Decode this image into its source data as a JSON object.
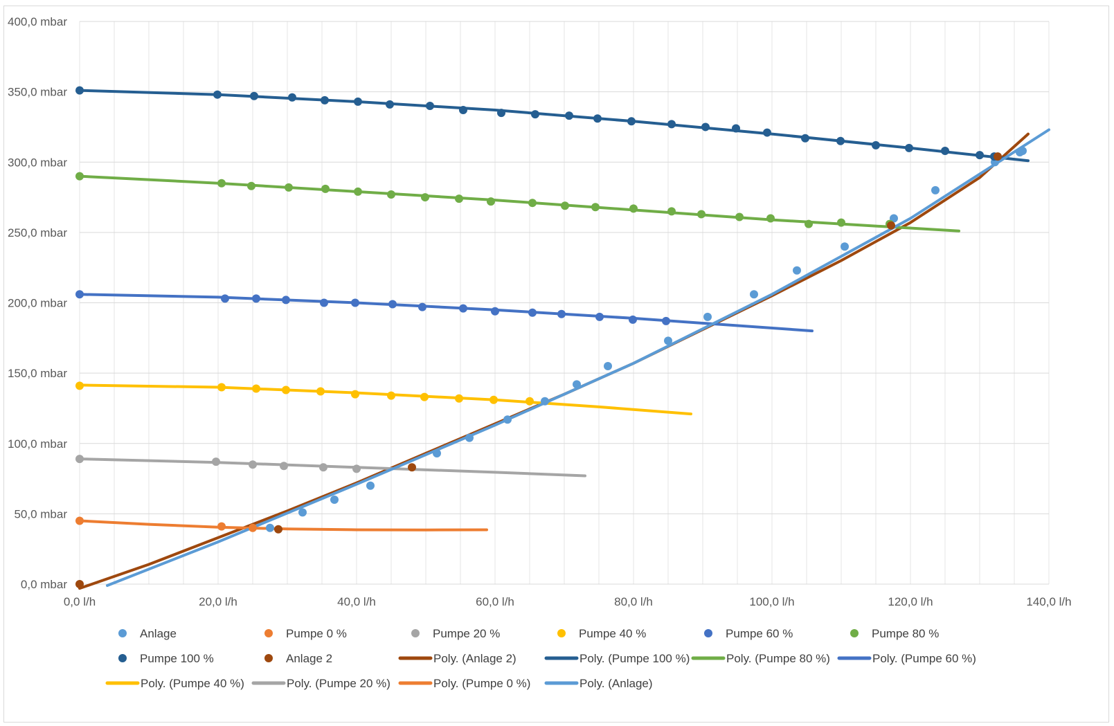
{
  "chart_data": {
    "type": "scatter",
    "title": "",
    "xlabel": "",
    "ylabel": "",
    "xlim": [
      0,
      140
    ],
    "ylim": [
      0,
      400
    ],
    "grid": true,
    "legend_position": "bottom",
    "x_ticks": [
      {
        "value": 0,
        "label": "0,0 l/h"
      },
      {
        "value": 20,
        "label": "20,0 l/h"
      },
      {
        "value": 40,
        "label": "40,0 l/h"
      },
      {
        "value": 60,
        "label": "60,0 l/h"
      },
      {
        "value": 80,
        "label": "80,0 l/h"
      },
      {
        "value": 100,
        "label": "100,0 l/h"
      },
      {
        "value": 120,
        "label": "120,0 l/h"
      },
      {
        "value": 140,
        "label": "140,0 l/h"
      }
    ],
    "y_ticks": [
      {
        "value": 0,
        "label": "0,0 mbar"
      },
      {
        "value": 50,
        "label": "50,0 mbar"
      },
      {
        "value": 100,
        "label": "100,0 mbar"
      },
      {
        "value": 150,
        "label": "150,0 mbar"
      },
      {
        "value": 200,
        "label": "200,0 mbar"
      },
      {
        "value": 250,
        "label": "250,0 mbar"
      },
      {
        "value": 300,
        "label": "300,0 mbar"
      },
      {
        "value": 350,
        "label": "350,0 mbar"
      },
      {
        "value": 400,
        "label": "400,0 mbar"
      }
    ],
    "series": [
      {
        "name": "Anlage",
        "color": "#5b9bd5",
        "kind": "points",
        "points": [
          [
            27.5,
            40
          ],
          [
            32.2,
            51
          ],
          [
            36.8,
            60
          ],
          [
            42,
            70
          ],
          [
            51.6,
            93
          ],
          [
            56.3,
            104
          ],
          [
            61.8,
            117
          ],
          [
            67.2,
            130
          ],
          [
            71.8,
            142
          ],
          [
            76.3,
            155
          ],
          [
            85,
            173
          ],
          [
            90.7,
            190
          ],
          [
            97.4,
            206
          ],
          [
            103.6,
            223
          ],
          [
            110.5,
            240
          ],
          [
            117.6,
            260
          ],
          [
            123.6,
            280
          ],
          [
            132.2,
            300
          ],
          [
            135.8,
            307
          ],
          [
            136.2,
            308
          ]
        ]
      },
      {
        "name": "Pumpe 0 %",
        "color": "#ed7d31",
        "kind": "points",
        "points": [
          [
            0,
            45
          ],
          [
            20.5,
            41
          ],
          [
            25,
            40
          ]
        ]
      },
      {
        "name": "Pumpe 20 %",
        "color": "#a5a5a5",
        "kind": "points",
        "points": [
          [
            0,
            89
          ],
          [
            19.7,
            87
          ],
          [
            25,
            85
          ],
          [
            29.5,
            84
          ],
          [
            35.2,
            83
          ],
          [
            40,
            82
          ]
        ]
      },
      {
        "name": "Pumpe 40 %",
        "color": "#ffc000",
        "kind": "points",
        "points": [
          [
            0,
            141
          ],
          [
            20.5,
            140
          ],
          [
            25.5,
            139
          ],
          [
            29.8,
            138
          ],
          [
            34.8,
            137
          ],
          [
            39.8,
            135
          ],
          [
            45,
            134
          ],
          [
            49.8,
            133
          ],
          [
            54.8,
            132
          ],
          [
            59.8,
            131
          ],
          [
            65,
            130
          ]
        ]
      },
      {
        "name": "Pumpe 60 %",
        "color": "#4472c4",
        "kind": "points",
        "points": [
          [
            0,
            206
          ],
          [
            21,
            203
          ],
          [
            25.5,
            203
          ],
          [
            29.8,
            202
          ],
          [
            35.3,
            200
          ],
          [
            39.8,
            200
          ],
          [
            45.2,
            199
          ],
          [
            49.5,
            197
          ],
          [
            55.4,
            196
          ],
          [
            60,
            194
          ],
          [
            65.4,
            193
          ],
          [
            69.6,
            192
          ],
          [
            75.1,
            190
          ],
          [
            79.9,
            188
          ],
          [
            84.7,
            187
          ]
        ]
      },
      {
        "name": "Pumpe 80 %",
        "color": "#70ad47",
        "kind": "points",
        "points": [
          [
            0,
            290
          ],
          [
            20.5,
            285
          ],
          [
            24.8,
            283
          ],
          [
            30.2,
            282
          ],
          [
            35.5,
            281
          ],
          [
            40.2,
            279
          ],
          [
            45,
            277
          ],
          [
            49.9,
            275
          ],
          [
            54.8,
            274
          ],
          [
            59.4,
            272
          ],
          [
            65.4,
            271
          ],
          [
            70.1,
            269
          ],
          [
            74.5,
            268
          ],
          [
            80,
            267
          ],
          [
            85.5,
            265
          ],
          [
            89.8,
            263
          ],
          [
            95.3,
            261
          ],
          [
            99.8,
            260
          ],
          [
            105.3,
            256
          ],
          [
            110,
            257
          ],
          [
            117,
            256
          ]
        ]
      },
      {
        "name": "Pumpe 100 %",
        "color": "#255e91",
        "kind": "points",
        "points": [
          [
            0,
            351
          ],
          [
            19.9,
            348
          ],
          [
            25.2,
            347
          ],
          [
            30.7,
            346
          ],
          [
            35.4,
            344
          ],
          [
            40.2,
            343
          ],
          [
            44.8,
            341
          ],
          [
            50.6,
            340
          ],
          [
            55.4,
            337
          ],
          [
            60.9,
            335
          ],
          [
            65.8,
            334
          ],
          [
            70.7,
            333
          ],
          [
            74.8,
            331
          ],
          [
            79.7,
            329
          ],
          [
            85.5,
            327
          ],
          [
            90.4,
            325
          ],
          [
            94.8,
            324
          ],
          [
            99.3,
            321
          ],
          [
            104.8,
            317
          ],
          [
            109.9,
            315
          ],
          [
            115,
            312
          ],
          [
            119.8,
            310
          ],
          [
            125,
            308
          ],
          [
            130,
            305
          ],
          [
            132.1,
            304
          ]
        ]
      },
      {
        "name": "Anlage 2",
        "color": "#9e480e",
        "kind": "points",
        "points": [
          [
            0,
            0
          ],
          [
            28.7,
            39
          ],
          [
            48,
            83
          ],
          [
            117.2,
            255
          ],
          [
            132.6,
            304
          ]
        ]
      },
      {
        "name": "Poly. (Anlage 2)",
        "color": "#9e480e",
        "kind": "line",
        "points": [
          [
            0,
            -3
          ],
          [
            10,
            14
          ],
          [
            20,
            33
          ],
          [
            30,
            52
          ],
          [
            40,
            72
          ],
          [
            50,
            93
          ],
          [
            60,
            114
          ],
          [
            70,
            135
          ],
          [
            80,
            157
          ],
          [
            90,
            181
          ],
          [
            100,
            205
          ],
          [
            110,
            230
          ],
          [
            120,
            257
          ],
          [
            130,
            289
          ],
          [
            137,
            320
          ]
        ]
      },
      {
        "name": "Poly. (Pumpe 100 %)",
        "color": "#255e91",
        "kind": "line",
        "points": [
          [
            0,
            351
          ],
          [
            20,
            348
          ],
          [
            40,
            343
          ],
          [
            60,
            337
          ],
          [
            80,
            329
          ],
          [
            100,
            320
          ],
          [
            120,
            310
          ],
          [
            137,
            301
          ]
        ]
      },
      {
        "name": "Poly. (Pumpe 80 %)",
        "color": "#70ad47",
        "kind": "line",
        "points": [
          [
            0,
            290
          ],
          [
            20,
            285
          ],
          [
            40,
            279
          ],
          [
            60,
            273
          ],
          [
            80,
            266
          ],
          [
            100,
            259
          ],
          [
            127,
            251
          ]
        ]
      },
      {
        "name": "Poly. (Pumpe 60 %)",
        "color": "#4472c4",
        "kind": "line",
        "points": [
          [
            0,
            206
          ],
          [
            20,
            204
          ],
          [
            40,
            200
          ],
          [
            60,
            195
          ],
          [
            80,
            189
          ],
          [
            105.8,
            180
          ]
        ]
      },
      {
        "name": "Poly. (Pumpe 40 %)",
        "color": "#ffc000",
        "kind": "line",
        "points": [
          [
            0,
            141.5
          ],
          [
            20,
            140
          ],
          [
            40,
            136
          ],
          [
            60,
            131
          ],
          [
            75,
            126
          ],
          [
            88.3,
            121
          ]
        ]
      },
      {
        "name": "Poly. (Pumpe 20 %)",
        "color": "#a5a5a5",
        "kind": "line",
        "points": [
          [
            0,
            89
          ],
          [
            20,
            86.5
          ],
          [
            40,
            83
          ],
          [
            60,
            79.5
          ],
          [
            73,
            77
          ]
        ]
      },
      {
        "name": "Poly. (Pumpe 0 %)",
        "color": "#ed7d31",
        "kind": "line",
        "points": [
          [
            0,
            45
          ],
          [
            10,
            42.5
          ],
          [
            20,
            40.5
          ],
          [
            30,
            39.2
          ],
          [
            40,
            38.6
          ],
          [
            50,
            38.5
          ],
          [
            58.8,
            38.6
          ]
        ]
      },
      {
        "name": "Poly. (Anlage)",
        "color": "#5b9bd5",
        "kind": "line",
        "points": [
          [
            4,
            -1
          ],
          [
            20,
            30
          ],
          [
            40,
            71
          ],
          [
            60,
            113
          ],
          [
            80,
            157
          ],
          [
            100,
            206
          ],
          [
            120,
            260
          ],
          [
            140,
            323
          ]
        ]
      }
    ]
  }
}
